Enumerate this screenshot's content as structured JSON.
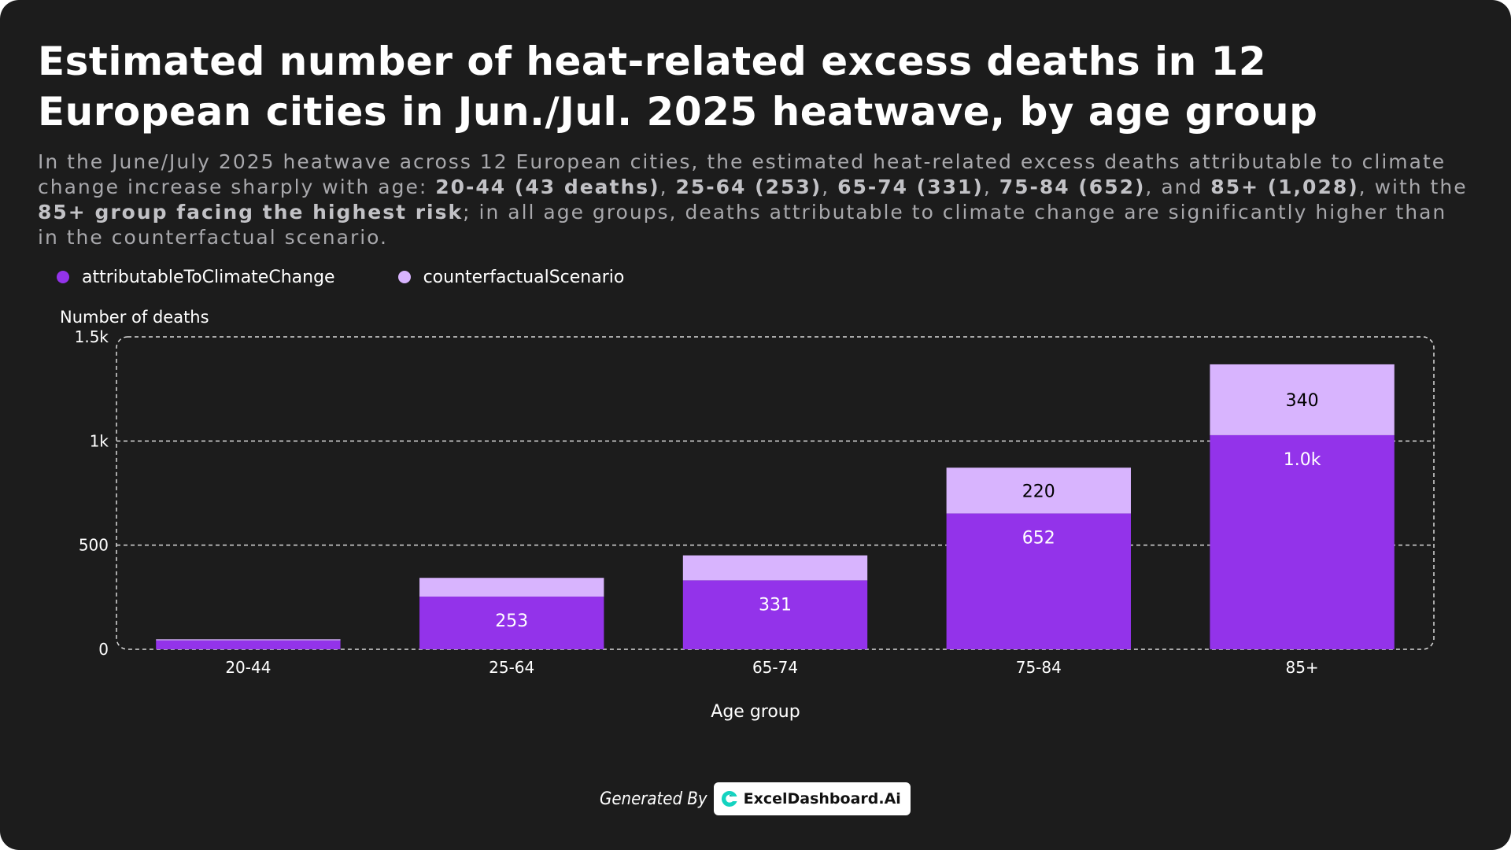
{
  "header": {
    "title": "Estimated number of heat-related excess deaths in 12 European cities in Jun./Jul. 2025 heatwave, by age group",
    "subtitle_parts": [
      {
        "text": "In the June/July 2025 heatwave across 12 European cities, the estimated heat-related excess deaths attributable to climate change increase sharply with age: ",
        "bold": false
      },
      {
        "text": "20-44 (43 deaths)",
        "bold": true
      },
      {
        "text": ", ",
        "bold": false
      },
      {
        "text": "25-64 (253)",
        "bold": true
      },
      {
        "text": ", ",
        "bold": false
      },
      {
        "text": "65-74 (331)",
        "bold": true
      },
      {
        "text": ", ",
        "bold": false
      },
      {
        "text": "75-84 (652)",
        "bold": true
      },
      {
        "text": ", and ",
        "bold": false
      },
      {
        "text": "85+ (1,028)",
        "bold": true
      },
      {
        "text": ", with the ",
        "bold": false
      },
      {
        "text": "85+ group facing the highest risk",
        "bold": true
      },
      {
        "text": "; in all age groups, deaths attributable to climate change are significantly higher than in the counterfactual scenario.",
        "bold": false
      }
    ]
  },
  "colors": {
    "background": "#1c1c1c",
    "attributable": "#9333ea",
    "counterfactual": "#d8b4fe",
    "text": "#ffffff",
    "grid": "#d9d9d9"
  },
  "chart_data": {
    "type": "bar",
    "stacked": true,
    "categories": [
      "20-44",
      "25-64",
      "65-74",
      "75-84",
      "85+"
    ],
    "series": [
      {
        "name": "attributableToClimateChange",
        "values": [
          43,
          253,
          331,
          652,
          1028
        ],
        "labels": [
          "",
          "253",
          "331",
          "652",
          "1.0k"
        ],
        "color": "#9333ea",
        "label_color": "#ffffff"
      },
      {
        "name": "counterfactualScenario",
        "values": [
          5,
          90,
          120,
          220,
          340
        ],
        "labels": [
          "",
          "",
          "",
          "220",
          "340"
        ],
        "color": "#d8b4fe",
        "label_color": "#000000"
      }
    ],
    "xlabel": "Age group",
    "ylabel": "Number of deaths",
    "ylim": [
      0,
      1500
    ],
    "yticks": [
      0,
      500,
      1000,
      1500
    ],
    "ytick_labels": [
      "0",
      "500",
      "1k",
      "1.5k"
    ],
    "grid": true,
    "legend": "top-left"
  },
  "footer": {
    "generated_by": "Generated By",
    "brand": "ExcelDashboard.Ai",
    "brand_icon": "exceldashboard-logo-icon"
  }
}
